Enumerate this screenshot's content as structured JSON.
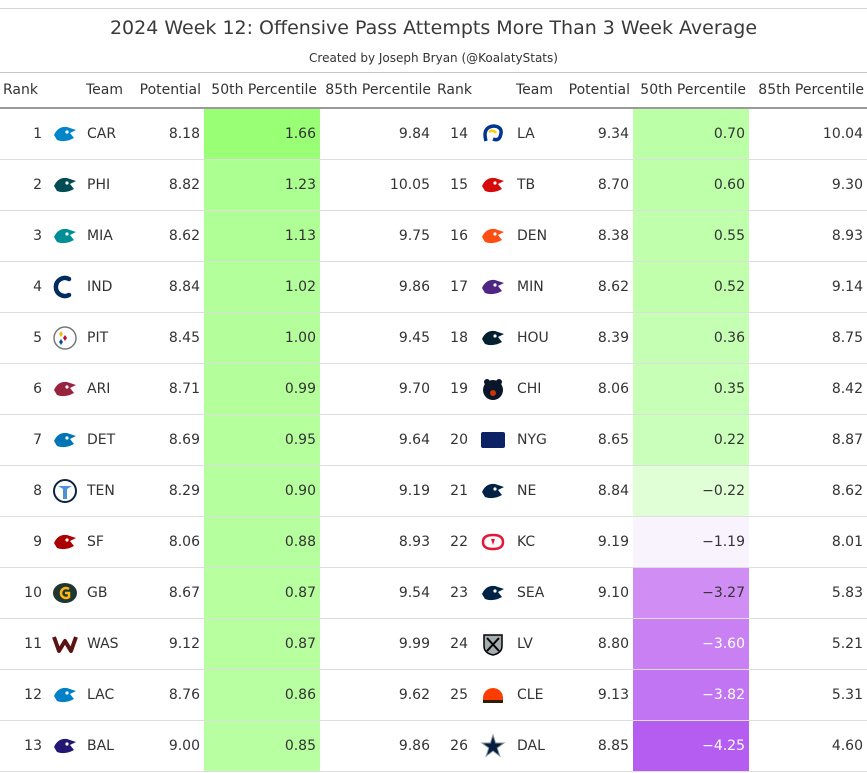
{
  "title": "2024 Week 12: Offensive Pass Attempts More Than 3 Week Average",
  "subtitle": "Created by Joseph Bryan (@KoalatyStats)",
  "headers": [
    "Rank",
    "Team",
    "Potential",
    "50th Percentile",
    "85th Percentile",
    "Rank",
    "Team",
    "Potential",
    "50th Percentile",
    "85th Percentile"
  ],
  "chart_data": {
    "type": "table",
    "title": "2024 Week 12: Offensive Pass Attempts More Than 3 Week Average",
    "columns": [
      "Rank",
      "Team",
      "Potential",
      "50th Percentile",
      "85th Percentile"
    ],
    "rows": [
      {
        "rank": "1",
        "team": "CAR",
        "potential": "8.18",
        "p50": "1.66",
        "p85": "9.84",
        "bg": "#99ff75",
        "icon": "panthers-logo-icon",
        "logo_color": "#0085CA"
      },
      {
        "rank": "2",
        "team": "PHI",
        "potential": "8.82",
        "p50": "1.23",
        "p85": "10.05",
        "bg": "#acff91",
        "icon": "eagles-logo-icon",
        "logo_color": "#004C54"
      },
      {
        "rank": "3",
        "team": "MIA",
        "potential": "8.62",
        "p50": "1.13",
        "p85": "9.75",
        "bg": "#b0ff96",
        "icon": "dolphins-logo-icon",
        "logo_color": "#008E97"
      },
      {
        "rank": "4",
        "team": "IND",
        "potential": "8.84",
        "p50": "1.02",
        "p85": "9.86",
        "bg": "#b3ff9b",
        "icon": "colts-logo-icon",
        "logo_color": "#002C5F"
      },
      {
        "rank": "5",
        "team": "PIT",
        "potential": "8.45",
        "p50": "1.00",
        "p85": "9.45",
        "bg": "#b4ff9c",
        "icon": "steelers-logo-icon",
        "logo_color": "#101820"
      },
      {
        "rank": "6",
        "team": "ARI",
        "potential": "8.71",
        "p50": "0.99",
        "p85": "9.70",
        "bg": "#b4ff9c",
        "icon": "cardinals-logo-icon",
        "logo_color": "#97233F"
      },
      {
        "rank": "7",
        "team": "DET",
        "potential": "8.69",
        "p50": "0.95",
        "p85": "9.64",
        "bg": "#b5ff9d",
        "icon": "lions-logo-icon",
        "logo_color": "#0076B6"
      },
      {
        "rank": "8",
        "team": "TEN",
        "potential": "8.29",
        "p50": "0.90",
        "p85": "9.19",
        "bg": "#b6ff9f",
        "icon": "titans-logo-icon",
        "logo_color": "#4B92DB"
      },
      {
        "rank": "9",
        "team": "SF",
        "potential": "8.06",
        "p50": "0.88",
        "p85": "8.93",
        "bg": "#b6ff9f",
        "icon": "49ers-logo-icon",
        "logo_color": "#AA0000"
      },
      {
        "rank": "10",
        "team": "GB",
        "potential": "8.67",
        "p50": "0.87",
        "p85": "9.54",
        "bg": "#b7ff9f",
        "icon": "packers-logo-icon",
        "logo_color": "#203731"
      },
      {
        "rank": "11",
        "team": "WAS",
        "potential": "9.12",
        "p50": "0.87",
        "p85": "9.99",
        "bg": "#b7ff9f",
        "icon": "commanders-logo-icon",
        "logo_color": "#5A1414"
      },
      {
        "rank": "12",
        "team": "LAC",
        "potential": "8.76",
        "p50": "0.86",
        "p85": "9.62",
        "bg": "#b7ffa0",
        "icon": "chargers-logo-icon",
        "logo_color": "#0080C6"
      },
      {
        "rank": "13",
        "team": "BAL",
        "potential": "9.00",
        "p50": "0.85",
        "p85": "9.86",
        "bg": "#b7ffa0",
        "icon": "ravens-logo-icon",
        "logo_color": "#241773"
      },
      {
        "rank": "14",
        "team": "LA",
        "potential": "9.34",
        "p50": "0.70",
        "p85": "10.04",
        "bg": "#bbffa6",
        "icon": "rams-logo-icon",
        "logo_color": "#003594"
      },
      {
        "rank": "15",
        "team": "TB",
        "potential": "8.70",
        "p50": "0.60",
        "p85": "9.30",
        "bg": "#beffaa",
        "icon": "buccaneers-logo-icon",
        "logo_color": "#D50A0A"
      },
      {
        "rank": "16",
        "team": "DEN",
        "potential": "8.38",
        "p50": "0.55",
        "p85": "8.93",
        "bg": "#c0ffac",
        "icon": "broncos-logo-icon",
        "logo_color": "#FB4F14"
      },
      {
        "rank": "17",
        "team": "MIN",
        "potential": "8.62",
        "p50": "0.52",
        "p85": "9.14",
        "bg": "#c1ffad",
        "icon": "vikings-logo-icon",
        "logo_color": "#4F2683"
      },
      {
        "rank": "18",
        "team": "HOU",
        "potential": "8.39",
        "p50": "0.36",
        "p85": "8.75",
        "bg": "#c5ffb4",
        "icon": "texans-logo-icon",
        "logo_color": "#03202F"
      },
      {
        "rank": "19",
        "team": "CHI",
        "potential": "8.06",
        "p50": "0.35",
        "p85": "8.42",
        "bg": "#c6ffb5",
        "icon": "bears-logo-icon",
        "logo_color": "#0B162A"
      },
      {
        "rank": "20",
        "team": "NYG",
        "potential": "8.65",
        "p50": "0.22",
        "p85": "8.87",
        "bg": "#c9ffba",
        "icon": "giants-logo-icon",
        "logo_color": "#0B2265"
      },
      {
        "rank": "21",
        "team": "NE",
        "potential": "8.84",
        "p50": "−0.22",
        "p85": "8.62",
        "bg": "#e0ffd7",
        "icon": "patriots-logo-icon",
        "logo_color": "#002244"
      },
      {
        "rank": "22",
        "team": "KC",
        "potential": "9.19",
        "p50": "−1.19",
        "p85": "8.01",
        "bg": "#f9f3fd",
        "icon": "chiefs-logo-icon",
        "logo_color": "#E31837"
      },
      {
        "rank": "23",
        "team": "SEA",
        "potential": "9.10",
        "p50": "−3.27",
        "p85": "5.83",
        "bg": "#d08ef5",
        "icon": "seahawks-logo-icon",
        "logo_color": "#002244"
      },
      {
        "rank": "24",
        "team": "LV",
        "potential": "8.80",
        "p50": "−3.60",
        "p85": "5.21",
        "bg": "#c980f3",
        "icon": "raiders-logo-icon",
        "logo_color": "#000000"
      },
      {
        "rank": "25",
        "team": "CLE",
        "potential": "9.13",
        "p50": "−3.82",
        "p85": "5.31",
        "bg": "#c275f2",
        "icon": "browns-logo-icon",
        "logo_color": "#FF3C00"
      },
      {
        "rank": "26",
        "team": "DAL",
        "potential": "8.85",
        "p50": "−4.25",
        "p85": "4.60",
        "bg": "#b55df0",
        "icon": "cowboys-logo-icon",
        "logo_color": "#041E42"
      }
    ]
  }
}
